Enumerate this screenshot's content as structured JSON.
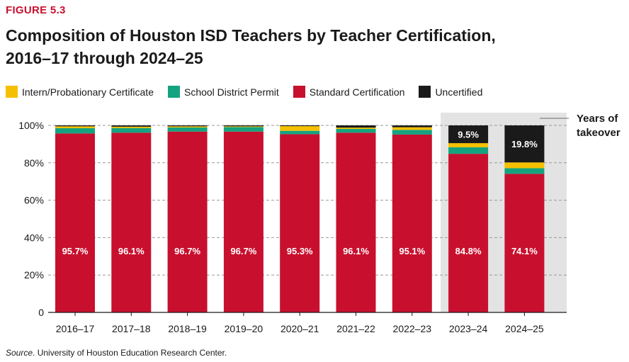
{
  "figure_label": "FIGURE 5.3",
  "source_label": "Source",
  "source_text": ". University of Houston Education Research Center.",
  "chart_data": {
    "type": "bar",
    "stacked": true,
    "title_line1": "Composition of Houston ISD Teachers by Teacher Certification,",
    "title_line2": "2016–17 through 2024–25",
    "categories": [
      "2016–17",
      "2017–18",
      "2018–19",
      "2019–20",
      "2020–21",
      "2021–22",
      "2022–23",
      "2023–24",
      "2024–25"
    ],
    "series": [
      {
        "name": "Standard Certification",
        "color": "#c8102e",
        "values": [
          95.7,
          96.1,
          96.7,
          96.7,
          95.3,
          96.1,
          95.1,
          84.8,
          74.1
        ]
      },
      {
        "name": "School District Permit",
        "color": "#15a37f",
        "values": [
          2.8,
          2.5,
          2.2,
          2.4,
          1.8,
          2.0,
          2.5,
          3.5,
          3.0
        ]
      },
      {
        "name": "Intern/Probationary Certificate",
        "color": "#f5c000",
        "values": [
          1.0,
          0.7,
          0.6,
          0.4,
          2.5,
          0.7,
          1.4,
          2.2,
          3.1
        ]
      },
      {
        "name": "Uncertified",
        "color": "#1a1a1a",
        "values": [
          0.5,
          0.7,
          0.5,
          0.5,
          0.4,
          1.2,
          1.0,
          9.5,
          19.8
        ]
      }
    ],
    "legend_order": [
      "Intern/Probationary Certificate",
      "School District Permit",
      "Standard Certification",
      "Uncertified"
    ],
    "data_labels": {
      "Standard Certification": [
        "95.7%",
        "96.1%",
        "96.7%",
        "96.7%",
        "95.3%",
        "96.1%",
        "95.1%",
        "84.8%",
        "74.1%"
      ],
      "Uncertified": [
        "",
        "",
        "",
        "",
        "",
        "",
        "",
        "9.5%",
        "19.8%"
      ]
    },
    "ylim": [
      0,
      100
    ],
    "yticks": [
      0,
      20,
      40,
      60,
      80,
      100
    ],
    "ytick_labels": [
      "0",
      "20%",
      "40%",
      "60%",
      "80%",
      "100%"
    ],
    "grid": true,
    "shaded_categories": [
      "2023–24",
      "2024–25"
    ],
    "shade_color": "#e3e3e3",
    "annotation_line1": "Years of",
    "annotation_line2": "takeover"
  }
}
